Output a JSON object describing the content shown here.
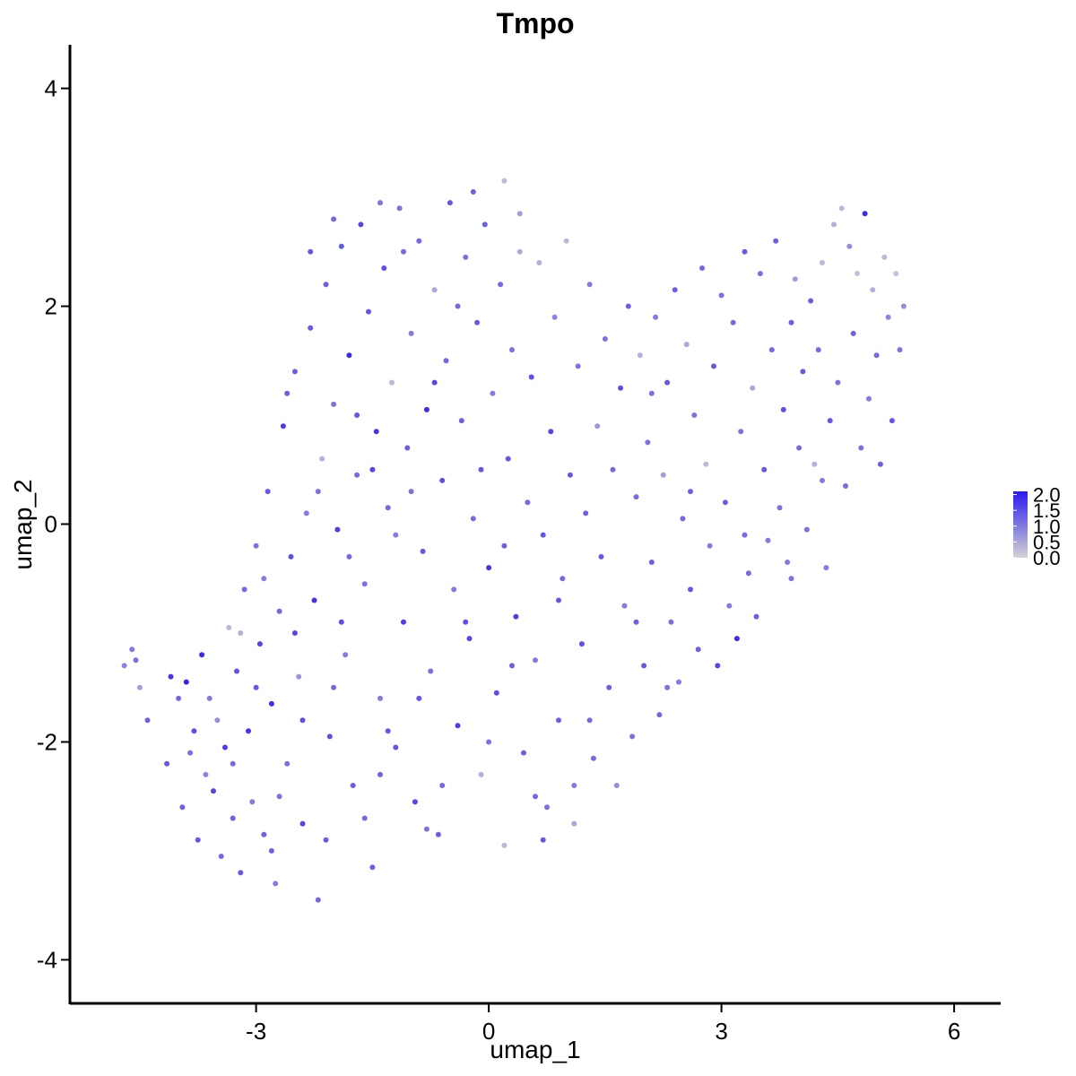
{
  "chart_data": {
    "type": "scatter",
    "title": "Tmpo",
    "xlabel": "umap_1",
    "ylabel": "umap_2",
    "xlim": [
      -5.4,
      6.6
    ],
    "ylim": [
      -4.4,
      4.4
    ],
    "x_ticks": [
      {
        "value": -3,
        "label": "-3"
      },
      {
        "value": 0,
        "label": "0"
      },
      {
        "value": 3,
        "label": "3"
      },
      {
        "value": 6,
        "label": "6"
      }
    ],
    "y_ticks": [
      {
        "value": -4,
        "label": "-4"
      },
      {
        "value": -2,
        "label": "-2"
      },
      {
        "value": 0,
        "label": "0"
      },
      {
        "value": 2,
        "label": "2"
      },
      {
        "value": 4,
        "label": "4"
      }
    ],
    "grid": false,
    "legend": {
      "placement": "right",
      "type": "colorbar",
      "min": 0,
      "max": 2.1,
      "low_color": "#d3d3d3",
      "high_color": "#2a1af0",
      "ticks": [
        {
          "value": 0.0,
          "label": "0.0"
        },
        {
          "value": 0.5,
          "label": "0.5"
        },
        {
          "value": 1.0,
          "label": "1.0"
        },
        {
          "value": 1.5,
          "label": "1.5"
        },
        {
          "value": 2.0,
          "label": "2.0"
        }
      ]
    },
    "points": [
      [
        -4.7,
        -1.3,
        0.9
      ],
      [
        -4.6,
        -1.15,
        1.0
      ],
      [
        -4.55,
        -1.25,
        1.1
      ],
      [
        -4.5,
        -1.5,
        0.6
      ],
      [
        -4.4,
        -1.8,
        1.3
      ],
      [
        -4.15,
        -2.2,
        1.4
      ],
      [
        -4.1,
        -1.4,
        1.8
      ],
      [
        -4.0,
        -1.6,
        1.2
      ],
      [
        -3.95,
        -2.6,
        1.3
      ],
      [
        -3.9,
        -1.45,
        2.0
      ],
      [
        -3.85,
        -2.1,
        1.1
      ],
      [
        -3.8,
        -1.9,
        1.5
      ],
      [
        -3.75,
        -2.9,
        1.4
      ],
      [
        -3.7,
        -1.2,
        1.9
      ],
      [
        -3.65,
        -2.3,
        0.9
      ],
      [
        -3.6,
        -1.6,
        1.0
      ],
      [
        -3.55,
        -2.45,
        1.6
      ],
      [
        -3.5,
        -1.8,
        0.8
      ],
      [
        -3.45,
        -3.05,
        1.2
      ],
      [
        -3.4,
        -2.05,
        1.7
      ],
      [
        -3.35,
        -0.95,
        0.3
      ],
      [
        -3.3,
        -2.7,
        1.3
      ],
      [
        -3.25,
        -1.35,
        1.5
      ],
      [
        -3.2,
        -3.2,
        1.4
      ],
      [
        -3.15,
        -0.6,
        1.2
      ],
      [
        -3.1,
        -1.9,
        1.8
      ],
      [
        -3.05,
        -2.55,
        1.0
      ],
      [
        -3.0,
        -0.2,
        1.1
      ],
      [
        -2.95,
        -1.1,
        1.6
      ],
      [
        -2.9,
        -2.85,
        1.3
      ],
      [
        -2.85,
        0.3,
        1.4
      ],
      [
        -2.8,
        -1.65,
        1.9
      ],
      [
        -2.75,
        -3.3,
        1.0
      ],
      [
        -2.7,
        -0.8,
        1.2
      ],
      [
        -2.65,
        0.9,
        1.7
      ],
      [
        -2.6,
        -2.2,
        1.1
      ],
      [
        -2.55,
        -0.3,
        1.5
      ],
      [
        -2.5,
        1.4,
        1.3
      ],
      [
        -2.45,
        -1.4,
        0.7
      ],
      [
        -2.4,
        -2.75,
        1.6
      ],
      [
        -2.35,
        0.1,
        1.0
      ],
      [
        -2.3,
        1.8,
        1.4
      ],
      [
        -2.25,
        -0.7,
        1.8
      ],
      [
        -2.2,
        -3.45,
        1.2
      ],
      [
        -2.15,
        0.6,
        0.4
      ],
      [
        -2.1,
        2.2,
        1.3
      ],
      [
        -2.05,
        -1.95,
        1.5
      ],
      [
        -2.0,
        1.1,
        1.1
      ],
      [
        -1.95,
        -0.05,
        1.7
      ],
      [
        -1.9,
        2.55,
        1.4
      ],
      [
        -1.85,
        -1.2,
        1.0
      ],
      [
        -1.8,
        1.55,
        1.9
      ],
      [
        -1.75,
        -2.4,
        1.3
      ],
      [
        -1.7,
        0.45,
        1.2
      ],
      [
        -1.65,
        2.75,
        1.6
      ],
      [
        -1.6,
        -0.55,
        1.1
      ],
      [
        -1.55,
        1.95,
        1.4
      ],
      [
        -1.5,
        -3.15,
        1.3
      ],
      [
        -1.45,
        0.85,
        1.8
      ],
      [
        -1.4,
        -1.6,
        1.0
      ],
      [
        -1.35,
        2.35,
        1.5
      ],
      [
        -1.3,
        0.15,
        1.2
      ],
      [
        -1.25,
        1.3,
        0.3
      ],
      [
        -1.2,
        -2.05,
        1.4
      ],
      [
        -1.15,
        2.9,
        1.1
      ],
      [
        -1.1,
        -0.9,
        1.7
      ],
      [
        -1.05,
        0.7,
        1.3
      ],
      [
        -1.0,
        1.75,
        1.0
      ],
      [
        -0.95,
        -2.55,
        1.6
      ],
      [
        -0.9,
        2.6,
        1.2
      ],
      [
        -0.85,
        -0.25,
        1.4
      ],
      [
        -0.8,
        1.05,
        1.9
      ],
      [
        -0.75,
        -1.35,
        1.1
      ],
      [
        -0.7,
        2.15,
        0.5
      ],
      [
        -0.65,
        -2.85,
        1.3
      ],
      [
        -0.6,
        0.4,
        1.5
      ],
      [
        -0.55,
        1.5,
        1.2
      ],
      [
        -0.5,
        2.95,
        1.4
      ],
      [
        -0.45,
        -0.6,
        1.0
      ],
      [
        -0.4,
        -1.85,
        1.7
      ],
      [
        -0.35,
        0.95,
        1.3
      ],
      [
        -0.3,
        2.45,
        1.1
      ],
      [
        -0.25,
        -1.05,
        1.6
      ],
      [
        -0.2,
        0.05,
        1.2
      ],
      [
        -0.15,
        1.85,
        1.4
      ],
      [
        -0.1,
        -2.3,
        0.4
      ],
      [
        -0.05,
        2.75,
        1.3
      ],
      [
        0.0,
        -0.4,
        1.8
      ],
      [
        0.05,
        1.2,
        1.0
      ],
      [
        0.1,
        -1.55,
        1.5
      ],
      [
        0.15,
        2.2,
        1.2
      ],
      [
        0.2,
        -2.95,
        0.3
      ],
      [
        0.25,
        0.6,
        1.4
      ],
      [
        0.3,
        1.6,
        1.1
      ],
      [
        0.35,
        -0.85,
        1.7
      ],
      [
        0.4,
        2.85,
        0.6
      ],
      [
        0.45,
        -2.1,
        1.3
      ],
      [
        0.5,
        0.2,
        1.2
      ],
      [
        0.55,
        1.35,
        1.5
      ],
      [
        0.6,
        -1.25,
        1.0
      ],
      [
        0.65,
        2.4,
        0.4
      ],
      [
        0.7,
        -0.1,
        1.4
      ],
      [
        0.75,
        -2.6,
        1.1
      ],
      [
        0.8,
        0.85,
        1.6
      ],
      [
        0.85,
        1.9,
        0.9
      ],
      [
        0.9,
        -1.8,
        1.3
      ],
      [
        0.95,
        -0.5,
        1.2
      ],
      [
        1.0,
        2.6,
        0.3
      ],
      [
        1.05,
        0.45,
        1.4
      ],
      [
        1.1,
        -2.75,
        0.5
      ],
      [
        1.15,
        1.45,
        1.1
      ],
      [
        1.2,
        -1.1,
        1.5
      ],
      [
        1.25,
        0.1,
        1.3
      ],
      [
        1.3,
        2.2,
        1.0
      ],
      [
        1.35,
        -2.15,
        1.2
      ],
      [
        1.4,
        0.9,
        0.7
      ],
      [
        1.45,
        -0.3,
        1.4
      ],
      [
        1.5,
        1.7,
        1.1
      ],
      [
        1.55,
        -1.5,
        1.3
      ],
      [
        1.6,
        0.5,
        1.2
      ],
      [
        1.65,
        -2.4,
        0.8
      ],
      [
        1.7,
        1.25,
        1.5
      ],
      [
        1.75,
        -0.75,
        1.0
      ],
      [
        1.8,
        2.0,
        1.3
      ],
      [
        1.85,
        -1.95,
        1.1
      ],
      [
        1.9,
        0.25,
        1.2
      ],
      [
        1.95,
        1.55,
        0.4
      ],
      [
        2.0,
        -1.3,
        1.4
      ],
      [
        2.05,
        0.75,
        1.1
      ],
      [
        2.1,
        -0.35,
        1.3
      ],
      [
        2.15,
        1.9,
        1.0
      ],
      [
        2.2,
        -1.75,
        1.2
      ],
      [
        2.25,
        0.45,
        0.6
      ],
      [
        2.3,
        1.3,
        1.4
      ],
      [
        2.35,
        -0.9,
        1.1
      ],
      [
        2.4,
        2.15,
        1.3
      ],
      [
        2.45,
        -1.45,
        1.0
      ],
      [
        2.5,
        0.05,
        1.2
      ],
      [
        2.55,
        1.65,
        0.5
      ],
      [
        2.6,
        -0.6,
        1.4
      ],
      [
        2.65,
        1.0,
        1.1
      ],
      [
        2.7,
        -1.15,
        1.3
      ],
      [
        2.75,
        2.35,
        1.2
      ],
      [
        2.8,
        0.55,
        0.3
      ],
      [
        2.85,
        -0.2,
        1.0
      ],
      [
        2.9,
        1.45,
        1.4
      ],
      [
        2.95,
        -1.3,
        1.6
      ],
      [
        3.0,
        2.1,
        1.1
      ],
      [
        3.05,
        0.2,
        1.3
      ],
      [
        3.1,
        -0.75,
        1.0
      ],
      [
        3.15,
        1.85,
        1.2
      ],
      [
        3.2,
        -1.05,
        1.9
      ],
      [
        3.25,
        0.85,
        1.1
      ],
      [
        3.3,
        2.5,
        1.4
      ],
      [
        3.35,
        -0.45,
        1.2
      ],
      [
        3.4,
        1.25,
        0.5
      ],
      [
        3.45,
        -0.85,
        1.3
      ],
      [
        3.5,
        2.3,
        1.1
      ],
      [
        3.55,
        0.5,
        1.4
      ],
      [
        3.6,
        -0.15,
        1.0
      ],
      [
        3.65,
        1.6,
        1.2
      ],
      [
        3.7,
        2.6,
        1.3
      ],
      [
        3.75,
        0.15,
        1.1
      ],
      [
        3.8,
        1.05,
        1.5
      ],
      [
        3.85,
        -0.35,
        1.0
      ],
      [
        3.9,
        1.85,
        1.3
      ],
      [
        3.95,
        2.25,
        0.6
      ],
      [
        4.0,
        0.7,
        1.2
      ],
      [
        4.05,
        1.4,
        1.4
      ],
      [
        4.1,
        -0.05,
        1.1
      ],
      [
        4.15,
        2.05,
        1.3
      ],
      [
        4.2,
        0.55,
        0.4
      ],
      [
        4.25,
        1.6,
        1.2
      ],
      [
        4.3,
        2.4,
        0.3
      ],
      [
        4.35,
        -0.4,
        1.0
      ],
      [
        4.4,
        0.95,
        1.4
      ],
      [
        4.45,
        2.75,
        0.4
      ],
      [
        4.5,
        1.3,
        1.1
      ],
      [
        4.55,
        2.9,
        0.3
      ],
      [
        4.6,
        0.35,
        1.2
      ],
      [
        4.65,
        2.55,
        0.8
      ],
      [
        4.7,
        1.75,
        1.3
      ],
      [
        4.75,
        2.3,
        0.2
      ],
      [
        4.8,
        0.7,
        1.1
      ],
      [
        4.85,
        2.85,
        1.9
      ],
      [
        4.9,
        1.15,
        1.0
      ],
      [
        4.95,
        2.15,
        0.4
      ],
      [
        5.0,
        1.55,
        1.2
      ],
      [
        5.05,
        0.55,
        1.3
      ],
      [
        5.1,
        2.45,
        0.3
      ],
      [
        5.15,
        1.9,
        0.9
      ],
      [
        5.2,
        0.95,
        1.4
      ],
      [
        5.25,
        2.3,
        0.2
      ],
      [
        5.3,
        1.6,
        1.1
      ],
      [
        5.35,
        2.0,
        0.8
      ],
      [
        -3.3,
        -2.2,
        1.2
      ],
      [
        -3.0,
        -1.5,
        1.4
      ],
      [
        -2.7,
        -2.5,
        1.1
      ],
      [
        -2.4,
        -1.8,
        1.5
      ],
      [
        -2.1,
        -2.9,
        1.3
      ],
      [
        -1.8,
        -0.3,
        1.2
      ],
      [
        -1.5,
        0.5,
        1.6
      ],
      [
        -1.2,
        -0.1,
        1.0
      ],
      [
        -0.9,
        -1.6,
        1.4
      ],
      [
        -0.6,
        -2.4,
        1.2
      ],
      [
        -0.3,
        -0.9,
        1.5
      ],
      [
        0.0,
        -2.0,
        1.1
      ],
      [
        0.3,
        -1.3,
        1.3
      ],
      [
        0.6,
        -2.5,
        1.2
      ],
      [
        0.9,
        -0.7,
        1.4
      ],
      [
        -2.6,
        1.2,
        1.3
      ],
      [
        -2.2,
        0.3,
        1.1
      ],
      [
        -1.9,
        -0.9,
        1.5
      ],
      [
        -1.6,
        -2.7,
        1.2
      ],
      [
        -1.3,
        -1.9,
        1.4
      ],
      [
        -1.0,
        0.3,
        1.1
      ],
      [
        -0.7,
        1.3,
        1.6
      ],
      [
        -0.4,
        2.0,
        1.2
      ],
      [
        -0.1,
        0.5,
        1.4
      ],
      [
        0.2,
        -0.2,
        1.3
      ],
      [
        -2.9,
        -0.5,
        1.0
      ],
      [
        -2.5,
        -1.0,
        1.6
      ],
      [
        -2.0,
        -1.5,
        1.2
      ],
      [
        -1.4,
        -2.3,
        1.3
      ],
      [
        -0.8,
        -2.8,
        1.1
      ],
      [
        -3.2,
        -1.0,
        0.4
      ],
      [
        -2.8,
        -3.0,
        1.3
      ],
      [
        -1.7,
        1.0,
        1.4
      ],
      [
        -1.1,
        2.5,
        1.2
      ],
      [
        0.4,
        2.5,
        0.5
      ],
      [
        1.3,
        -1.8,
        1.2
      ],
      [
        1.9,
        -0.9,
        1.3
      ],
      [
        2.3,
        -1.5,
        1.1
      ],
      [
        0.7,
        -2.9,
        1.4
      ],
      [
        1.1,
        -2.4,
        1.0
      ],
      [
        -2.3,
        2.5,
        1.4
      ],
      [
        -2.0,
        2.8,
        1.2
      ],
      [
        -1.4,
        2.95,
        1.1
      ],
      [
        -0.2,
        3.05,
        1.3
      ],
      [
        0.2,
        3.15,
        0.3
      ],
      [
        2.1,
        1.2,
        1.1
      ],
      [
        2.6,
        0.3,
        1.3
      ],
      [
        3.3,
        -0.1,
        1.2
      ],
      [
        3.9,
        -0.5,
        1.1
      ],
      [
        4.3,
        0.4,
        1.0
      ]
    ]
  }
}
